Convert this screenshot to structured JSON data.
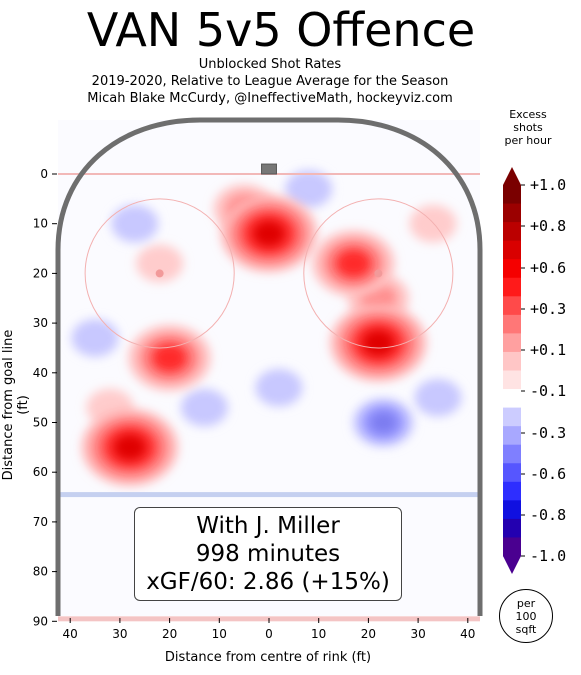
{
  "title": "VAN 5v5 Offence",
  "subtitle_lines": [
    "Unblocked Shot Rates",
    "2019-2020, Relative to League Average for the Season",
    "Micah Blake McCurdy, @IneffectiveMath, hockeyviz.com"
  ],
  "info_box": {
    "line1": "With J. Miller",
    "line2": "998 minutes",
    "line3": "xGF/60: 2.86 (+15%)"
  },
  "colorbar": {
    "title_lines": [
      "Excess",
      "shots",
      "per hour"
    ],
    "tick_labels": [
      "+1.0",
      "+0.8",
      "+0.6",
      "+0.3",
      "+0.1",
      "-0.1",
      "-0.3",
      "-0.6",
      "-0.8",
      "-1.0"
    ],
    "colors": [
      "#7a0000",
      "#9b0000",
      "#bb0000",
      "#d90000",
      "#f50000",
      "#ff1a1a",
      "#ff4a4a",
      "#ff7777",
      "#ffa0a0",
      "#ffc6c6",
      "#ffe3e3",
      "#ffffff",
      "#ccccff",
      "#a8a8ff",
      "#7f7fff",
      "#5656ff",
      "#2e2eff",
      "#1010e0",
      "#2300b0",
      "#4a0090"
    ]
  },
  "unit_badge": [
    "per",
    "100",
    "sqft"
  ],
  "chart_data": {
    "type": "heatmap",
    "title": "VAN 5v5 Offence",
    "xlabel": "Distance from centre of rink (ft)",
    "ylabel": "Distance from goal line (ft)",
    "xlim": [
      -42.5,
      42.5
    ],
    "ylim": [
      90,
      -11
    ],
    "x_tick_labels": [
      "40",
      "30",
      "20",
      "10",
      "0",
      "10",
      "20",
      "30",
      "40"
    ],
    "y_tick_labels": [
      "0",
      "10",
      "20",
      "30",
      "40",
      "50",
      "60",
      "70",
      "80",
      "90"
    ],
    "color_range": [
      -1.0,
      1.0
    ],
    "regions": [
      {
        "x": 0,
        "y": 12,
        "level": 0.8
      },
      {
        "x": -5,
        "y": 7,
        "level": 0.3
      },
      {
        "x": 17,
        "y": 18,
        "level": 0.6
      },
      {
        "x": 22,
        "y": 34,
        "level": 0.8
      },
      {
        "x": 22,
        "y": 25,
        "level": 0.3
      },
      {
        "x": -20,
        "y": 37,
        "level": 0.6
      },
      {
        "x": -28,
        "y": 55,
        "level": 0.8
      },
      {
        "x": -32,
        "y": 47,
        "level": 0.1
      },
      {
        "x": -22,
        "y": 18,
        "level": 0.1
      },
      {
        "x": 33,
        "y": 10,
        "level": 0.1
      },
      {
        "x": -27,
        "y": 10,
        "level": -0.1
      },
      {
        "x": 8,
        "y": 3,
        "level": -0.1
      },
      {
        "x": 23,
        "y": 50,
        "level": -0.3
      },
      {
        "x": 2,
        "y": 43,
        "level": -0.1
      },
      {
        "x": -35,
        "y": 33,
        "level": -0.1
      },
      {
        "x": -13,
        "y": 47,
        "level": -0.1
      },
      {
        "x": 34,
        "y": 45,
        "level": -0.1
      }
    ]
  }
}
